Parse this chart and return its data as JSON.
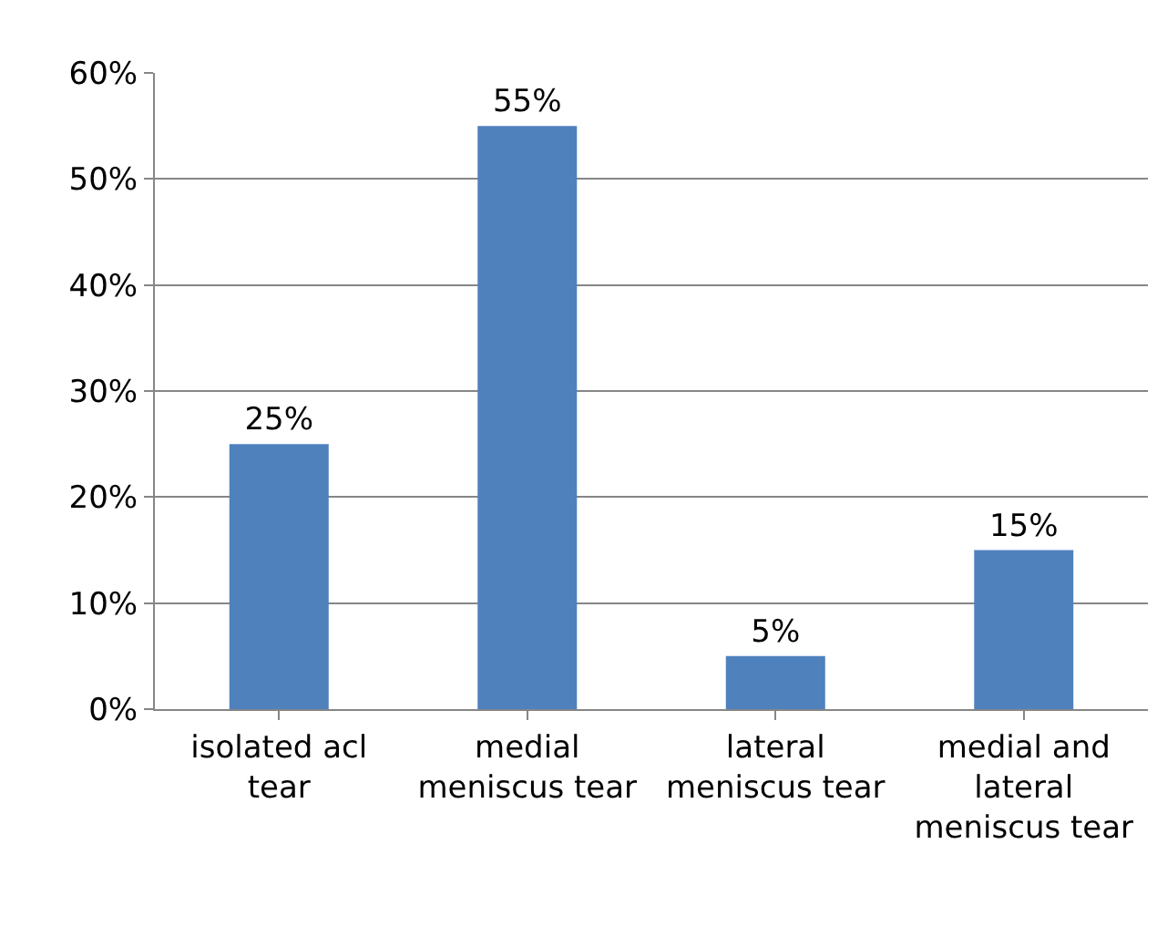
{
  "chart_data": {
    "type": "bar",
    "categories": [
      "isolated acl tear",
      "medial meniscus tear",
      "lateral meniscus tear",
      "medial and lateral meniscus tear"
    ],
    "values": [
      25,
      55,
      5,
      15
    ],
    "value_labels": [
      "25%",
      "55%",
      "5%",
      "15%"
    ],
    "color": "#4f81bd",
    "ylim": [
      0,
      60
    ],
    "yticks": [
      {
        "value": 0,
        "label": "0%"
      },
      {
        "value": 10,
        "label": "10%"
      },
      {
        "value": 20,
        "label": "20%"
      },
      {
        "value": 30,
        "label": "30%"
      },
      {
        "value": 40,
        "label": "40%"
      },
      {
        "value": 50,
        "label": "50%"
      },
      {
        "value": 60,
        "label": "60%"
      }
    ],
    "grid": "y"
  }
}
